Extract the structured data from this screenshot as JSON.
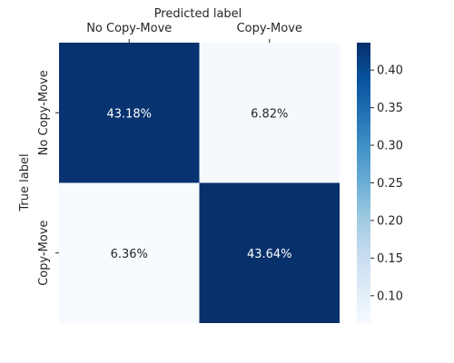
{
  "chart_data": {
    "type": "heatmap",
    "title": "Predicted label",
    "ylabel": "True label",
    "x_categories": [
      "No Copy-Move",
      "Copy-Move"
    ],
    "y_categories": [
      "No Copy-Move",
      "Copy-Move"
    ],
    "values": [
      [
        0.4318,
        0.0682
      ],
      [
        0.0636,
        0.4364
      ]
    ],
    "annotations": [
      [
        "43.18%",
        "6.82%"
      ],
      [
        "6.36%",
        "43.64%"
      ]
    ],
    "colorbar": {
      "colormap": "Blues",
      "vmin": 0.0636,
      "vmax": 0.4364,
      "ticks": [
        0.1,
        0.15,
        0.2,
        0.25,
        0.3,
        0.35,
        0.4
      ],
      "tick_labels": [
        "0.10",
        "0.15",
        "0.20",
        "0.25",
        "0.30",
        "0.35",
        "0.40"
      ]
    },
    "x_axis_position": "top",
    "grid": false
  }
}
